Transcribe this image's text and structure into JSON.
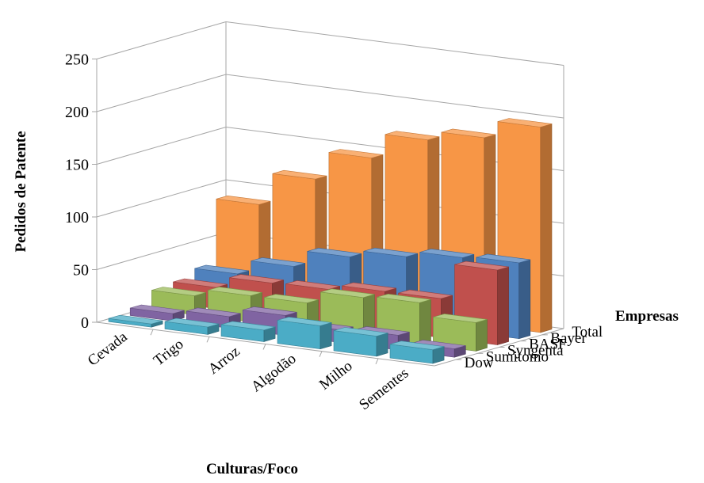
{
  "chart_data": {
    "type": "bar",
    "subtype": "3d-column",
    "title": "",
    "xlabel": "Culturas/Foco",
    "ylabel": "Pedidos de Patente",
    "zlabel": "Empresas",
    "ylim": [
      0,
      250
    ],
    "yticks": [
      0,
      50,
      100,
      150,
      200,
      250
    ],
    "grid": true,
    "categories": [
      "Cevada",
      "Trigo",
      "Arroz",
      "Algodão",
      "Milho",
      "Sementes"
    ],
    "series": [
      {
        "name": "Dow",
        "values": [
          3,
          7,
          11,
          22,
          19,
          13
        ]
      },
      {
        "name": "Sumitomo",
        "values": [
          7,
          11,
          19,
          12,
          14,
          8
        ]
      },
      {
        "name": "Syngenta",
        "values": [
          18,
          25,
          25,
          37,
          39,
          27
        ]
      },
      {
        "name": "BASF",
        "values": [
          20,
          31,
          32,
          37,
          37,
          71
        ]
      },
      {
        "name": "Bayer",
        "values": [
          27,
          41,
          57,
          64,
          70,
          72
        ]
      },
      {
        "name": "Total",
        "values": [
          87,
          118,
          145,
          169,
          178,
          195
        ]
      }
    ]
  },
  "colors": {
    "Dow": "#4bacc6",
    "Sumitomo": "#8064a2",
    "Syngenta": "#9bbb59",
    "BASF": "#c0504d",
    "Bayer": "#4f81bd",
    "Total": "#f79646",
    "grid": "#a6a6a6"
  }
}
